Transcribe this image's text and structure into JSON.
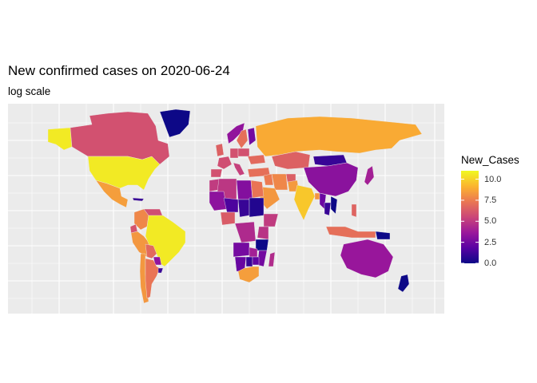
{
  "title": "New confirmed cases on 2020-06-24",
  "subtitle": "log scale",
  "legend": {
    "title": "New_Cases",
    "breaks": [
      {
        "value": 10.0,
        "label": "10.0"
      },
      {
        "value": 7.5,
        "label": "7.5"
      },
      {
        "value": 5.0,
        "label": "5.0"
      },
      {
        "value": 2.5,
        "label": "2.5"
      },
      {
        "value": 0.0,
        "label": "0.0"
      }
    ],
    "gradient": [
      "#0D0887",
      "#5B02A3",
      "#9A179B",
      "#CB4678",
      "#EB7852",
      "#FBB32F",
      "#F0F921"
    ]
  },
  "chart_data": {
    "type": "choropleth",
    "title": "New confirmed cases on 2020-06-24",
    "subtitle": "log scale",
    "fill_variable": "New_Cases",
    "scale": "log",
    "colormap": "plasma",
    "fill_range": [
      0,
      11
    ],
    "grid": true,
    "legend_position": "right",
    "regions": [
      {
        "name": "United States",
        "value": 10.6
      },
      {
        "name": "Alaska (USA)",
        "value": 10.6
      },
      {
        "name": "Brazil",
        "value": 10.6
      },
      {
        "name": "India",
        "value": 9.7
      },
      {
        "name": "Russia",
        "value": 8.9
      },
      {
        "name": "South Africa",
        "value": 8.5
      },
      {
        "name": "Mexico",
        "value": 8.5
      },
      {
        "name": "Peru",
        "value": 8.3
      },
      {
        "name": "Chile",
        "value": 8.3
      },
      {
        "name": "Colombia",
        "value": 7.8
      },
      {
        "name": "Saudi Arabia",
        "value": 8.3
      },
      {
        "name": "Pakistan",
        "value": 8.4
      },
      {
        "name": "Iran",
        "value": 7.8
      },
      {
        "name": "Bangladesh",
        "value": 8.2
      },
      {
        "name": "Kazakhstan",
        "value": 6.5
      },
      {
        "name": "Canada",
        "value": 5.9
      },
      {
        "name": "Argentina",
        "value": 7.2
      },
      {
        "name": "Egypt",
        "value": 7.2
      },
      {
        "name": "Sweden",
        "value": 7.0
      },
      {
        "name": "Ukraine",
        "value": 6.8
      },
      {
        "name": "Turkey",
        "value": 7.0
      },
      {
        "name": "Iraq",
        "value": 7.4
      },
      {
        "name": "Philippines",
        "value": 6.6
      },
      {
        "name": "Indonesia",
        "value": 7.0
      },
      {
        "name": "Nigeria",
        "value": 6.3
      },
      {
        "name": "Bolivia",
        "value": 6.8
      },
      {
        "name": "Ecuador",
        "value": 6.0
      },
      {
        "name": "Venezuela",
        "value": 5.8
      },
      {
        "name": "Ethiopia",
        "value": 5.1
      },
      {
        "name": "Kenya",
        "value": 4.8
      },
      {
        "name": "Algeria",
        "value": 4.9
      },
      {
        "name": "Libya",
        "value": 3.0
      },
      {
        "name": "Morocco",
        "value": 5.1
      },
      {
        "name": "Mali",
        "value": 3.3
      },
      {
        "name": "Niger",
        "value": 1.5
      },
      {
        "name": "Chad",
        "value": 1.0
      },
      {
        "name": "Sudan",
        "value": 0.5
      },
      {
        "name": "DR Congo",
        "value": 4.4
      },
      {
        "name": "Angola",
        "value": 2.6
      },
      {
        "name": "Tanzania",
        "value": 0.0
      },
      {
        "name": "Mozambique",
        "value": 2.5
      },
      {
        "name": "Zambia",
        "value": 4.0
      },
      {
        "name": "Namibia",
        "value": 2.2
      },
      {
        "name": "Botswana",
        "value": 1.0
      },
      {
        "name": "Zimbabwe",
        "value": 2.0
      },
      {
        "name": "Madagascar",
        "value": 4.5
      },
      {
        "name": "Mongolia",
        "value": 1.0
      },
      {
        "name": "China",
        "value": 3.2
      },
      {
        "name": "Myanmar",
        "value": 2.3
      },
      {
        "name": "Thailand",
        "value": 1.0
      },
      {
        "name": "Vietnam",
        "value": 0.0
      },
      {
        "name": "Japan",
        "value": 4.0
      },
      {
        "name": "Afghanistan",
        "value": 6.4
      },
      {
        "name": "Australia",
        "value": 3.6
      },
      {
        "name": "New Zealand",
        "value": 0.0
      },
      {
        "name": "Papua New Guinea",
        "value": 0.0
      },
      {
        "name": "Greenland",
        "value": 0.0
      },
      {
        "name": "Norway",
        "value": 3.4
      },
      {
        "name": "Finland",
        "value": 2.5
      },
      {
        "name": "France",
        "value": 5.8
      },
      {
        "name": "Spain",
        "value": 5.9
      },
      {
        "name": "Germany",
        "value": 5.9
      },
      {
        "name": "Poland",
        "value": 5.9
      },
      {
        "name": "United Kingdom",
        "value": 6.5
      },
      {
        "name": "Italy",
        "value": 5.3
      },
      {
        "name": "Cuba",
        "value": 1.0
      },
      {
        "name": "Paraguay",
        "value": 3.4
      },
      {
        "name": "Uruguay",
        "value": 1.0
      }
    ]
  }
}
